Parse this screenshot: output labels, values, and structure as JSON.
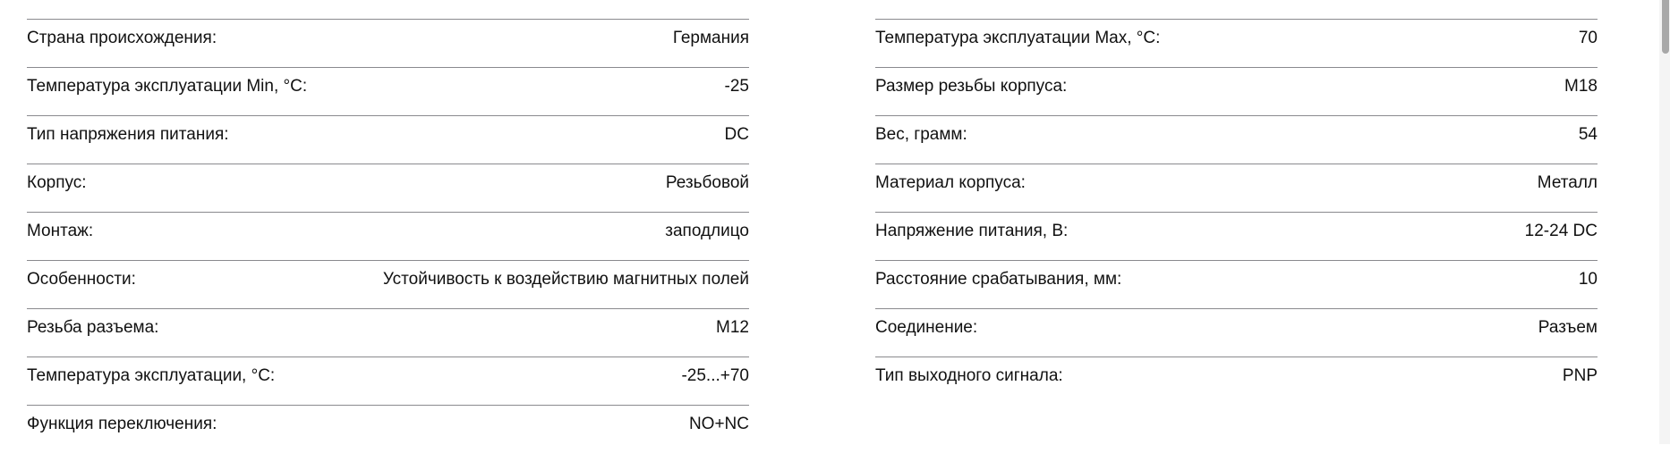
{
  "specs": {
    "left": [
      {
        "label": "Страна происхождения:",
        "value": "Германия"
      },
      {
        "label": "Температура эксплуатации Min, °C:",
        "value": "-25"
      },
      {
        "label": "Тип напряжения питания:",
        "value": "DC"
      },
      {
        "label": "Корпус:",
        "value": "Резьбовой"
      },
      {
        "label": "Монтаж:",
        "value": "заподлицо"
      },
      {
        "label": "Особенности:",
        "value": "Устойчивость к воздействию магнитных полей"
      },
      {
        "label": "Резьба разъема:",
        "value": "M12"
      },
      {
        "label": "Температура эксплуатации, °C:",
        "value": "-25...+70"
      },
      {
        "label": "Функция переключения:",
        "value": "NO+NC"
      }
    ],
    "right": [
      {
        "label": "Температура эксплуатации Max, °C:",
        "value": "70"
      },
      {
        "label": "Размер резьбы корпуса:",
        "value": "M18"
      },
      {
        "label": "Вес, грамм:",
        "value": "54"
      },
      {
        "label": "Материал корпуса:",
        "value": "Металл"
      },
      {
        "label": "Напряжение питания, В:",
        "value": "12-24 DC"
      },
      {
        "label": "Расстояние срабатывания, мм:",
        "value": "10"
      },
      {
        "label": "Соединение:",
        "value": "Разъем"
      },
      {
        "label": "Тип выходного сигнала:",
        "value": "PNP"
      }
    ]
  }
}
